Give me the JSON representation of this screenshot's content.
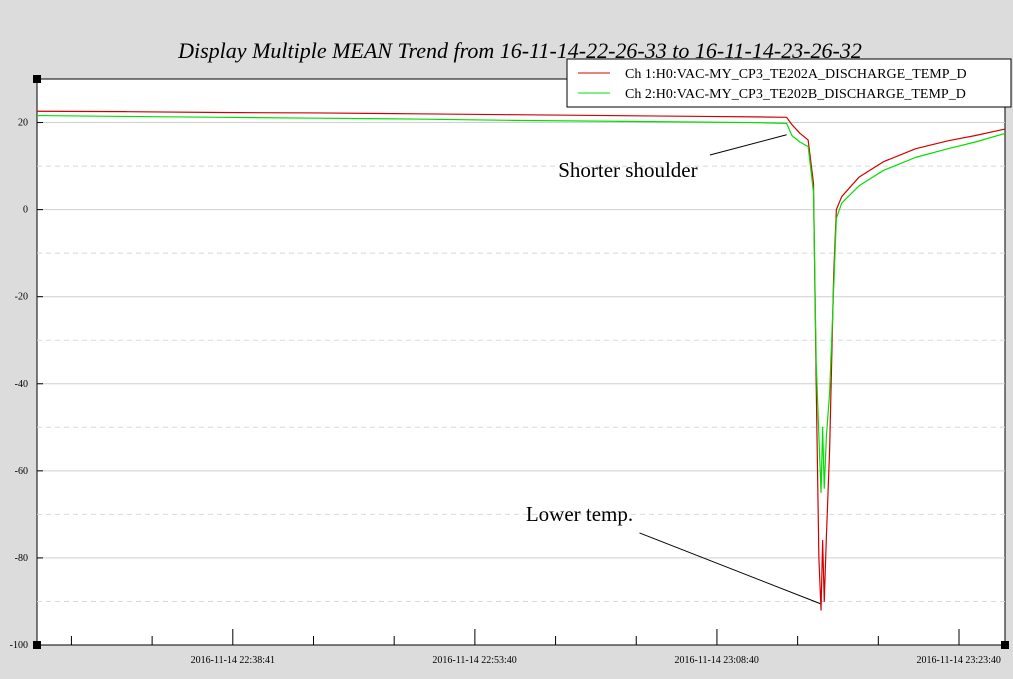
{
  "chart_data": {
    "type": "line",
    "title": "Display Multiple MEAN Trend from 16-11-14-22-26-33 to 16-11-14-23-26-32",
    "xlabel": "",
    "ylabel": "",
    "x_range": [
      "2016-11-14 22:26:33",
      "2016-11-14 23:26:32"
    ],
    "ylim": [
      -100,
      30
    ],
    "y_ticks": [
      20,
      0,
      -20,
      -40,
      -60,
      -80,
      -100
    ],
    "x_ticks": [
      "2016-11-14 22:38:41",
      "2016-11-14 22:53:40",
      "2016-11-14 23:08:40",
      "2016-11-14 23:23:40"
    ],
    "grid": true,
    "legend_position": "top-right",
    "series": [
      {
        "name": "Ch 1:H0:VAC-MY_CP3_TE202A_DISCHARGE_TEMP_D",
        "color": "#d40000",
        "points": [
          [
            "2016-11-14 22:26:33",
            22.6
          ],
          [
            "2016-11-14 22:32:00",
            22.5
          ],
          [
            "2016-11-14 22:38:00",
            22.3
          ],
          [
            "2016-11-14 22:44:00",
            22.2
          ],
          [
            "2016-11-14 22:50:00",
            22.0
          ],
          [
            "2016-11-14 22:56:00",
            21.8
          ],
          [
            "2016-11-14 23:02:00",
            21.6
          ],
          [
            "2016-11-14 23:08:00",
            21.4
          ],
          [
            "2016-11-14 23:11:00",
            21.3
          ],
          [
            "2016-11-14 23:13:00",
            21.2
          ],
          [
            "2016-11-14 23:13:20",
            19.5
          ],
          [
            "2016-11-14 23:13:50",
            17.5
          ],
          [
            "2016-11-14 23:14:20",
            16.0
          ],
          [
            "2016-11-14 23:14:40",
            6.0
          ],
          [
            "2016-11-14 23:14:50",
            -40.0
          ],
          [
            "2016-11-14 23:15:00",
            -80.0
          ],
          [
            "2016-11-14 23:15:08",
            -92.0
          ],
          [
            "2016-11-14 23:15:14",
            -76.0
          ],
          [
            "2016-11-14 23:15:20",
            -90.0
          ],
          [
            "2016-11-14 23:15:28",
            -75.0
          ],
          [
            "2016-11-14 23:15:40",
            -55.0
          ],
          [
            "2016-11-14 23:15:55",
            -15.0
          ],
          [
            "2016-11-14 23:16:05",
            0.0
          ],
          [
            "2016-11-14 23:16:25",
            3.0
          ],
          [
            "2016-11-14 23:17:30",
            7.5
          ],
          [
            "2016-11-14 23:19:00",
            11.0
          ],
          [
            "2016-11-14 23:21:00",
            14.0
          ],
          [
            "2016-11-14 23:23:00",
            15.8
          ],
          [
            "2016-11-14 23:24:40",
            17.0
          ],
          [
            "2016-11-14 23:26:32",
            18.5
          ]
        ]
      },
      {
        "name": "Ch 2:H0:VAC-MY_CP3_TE202B_DISCHARGE_TEMP_D",
        "color": "#00e000",
        "points": [
          [
            "2016-11-14 22:26:33",
            21.6
          ],
          [
            "2016-11-14 22:32:00",
            21.4
          ],
          [
            "2016-11-14 22:38:00",
            21.2
          ],
          [
            "2016-11-14 22:44:00",
            21.0
          ],
          [
            "2016-11-14 22:50:00",
            20.8
          ],
          [
            "2016-11-14 22:56:00",
            20.5
          ],
          [
            "2016-11-14 23:02:00",
            20.3
          ],
          [
            "2016-11-14 23:08:00",
            20.1
          ],
          [
            "2016-11-14 23:11:00",
            20.0
          ],
          [
            "2016-11-14 23:13:00",
            19.8
          ],
          [
            "2016-11-14 23:13:20",
            17.0
          ],
          [
            "2016-11-14 23:13:50",
            15.5
          ],
          [
            "2016-11-14 23:14:20",
            14.5
          ],
          [
            "2016-11-14 23:14:40",
            4.0
          ],
          [
            "2016-11-14 23:14:50",
            -35.0
          ],
          [
            "2016-11-14 23:15:00",
            -52.0
          ],
          [
            "2016-11-14 23:15:08",
            -65.0
          ],
          [
            "2016-11-14 23:15:14",
            -50.0
          ],
          [
            "2016-11-14 23:15:20",
            -64.0
          ],
          [
            "2016-11-14 23:15:28",
            -52.0
          ],
          [
            "2016-11-14 23:15:40",
            -42.0
          ],
          [
            "2016-11-14 23:15:55",
            -18.0
          ],
          [
            "2016-11-14 23:16:05",
            -2.0
          ],
          [
            "2016-11-14 23:16:25",
            1.5
          ],
          [
            "2016-11-14 23:17:30",
            5.5
          ],
          [
            "2016-11-14 23:19:00",
            9.0
          ],
          [
            "2016-11-14 23:21:00",
            12.0
          ],
          [
            "2016-11-14 23:23:00",
            14.0
          ],
          [
            "2016-11-14 23:24:40",
            15.5
          ],
          [
            "2016-11-14 23:26:32",
            17.5
          ]
        ]
      }
    ],
    "annotations": [
      {
        "text": "Shorter shoulder",
        "x": "2016-11-14 23:03:10",
        "y": 7.5,
        "target_x": "2016-11-14 23:13:00",
        "target_y": 17.2
      },
      {
        "text": "Lower temp.",
        "x": "2016-11-14 23:00:10",
        "y": -71.5,
        "target_x": "2016-11-14 23:15:05",
        "target_y": -90.5
      }
    ]
  }
}
